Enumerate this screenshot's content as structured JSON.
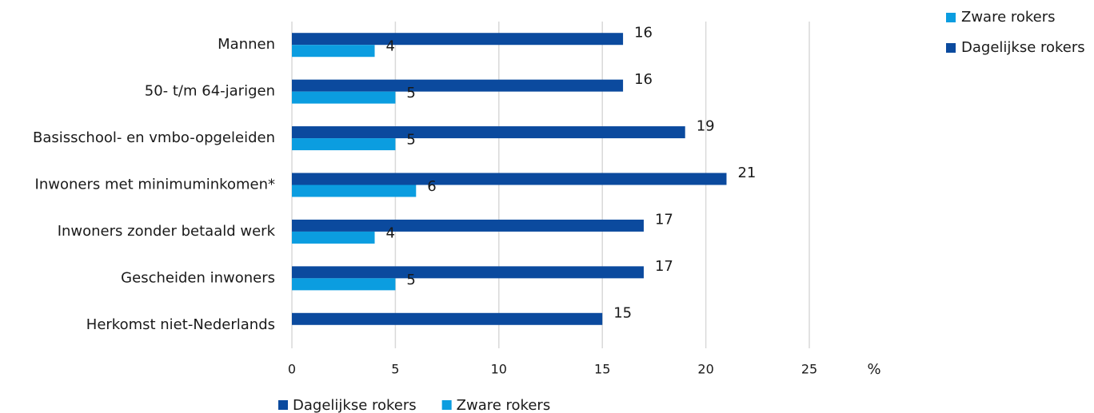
{
  "chart_data": {
    "type": "bar",
    "orientation": "horizontal",
    "categories": [
      "Mannen",
      "50- t/m 64-jarigen",
      "Basisschool- en vmbo-opgeleiden",
      "Inwoners met minimuminkomen*",
      "Inwoners zonder betaald werk",
      "Gescheiden inwoners",
      "Herkomst niet-Nederlands"
    ],
    "series": [
      {
        "name": "Dagelijkse rokers",
        "color": "#0b4a9e",
        "values": [
          16,
          16,
          19,
          21,
          17,
          17,
          15
        ]
      },
      {
        "name": "Zware rokers",
        "color": "#0b9de0",
        "values": [
          4,
          5,
          5,
          6,
          4,
          5,
          null
        ]
      }
    ],
    "x_label": "%",
    "xlim": [
      0,
      25
    ],
    "xticks": [
      0,
      5,
      10,
      15,
      20,
      25
    ],
    "grid": true
  }
}
